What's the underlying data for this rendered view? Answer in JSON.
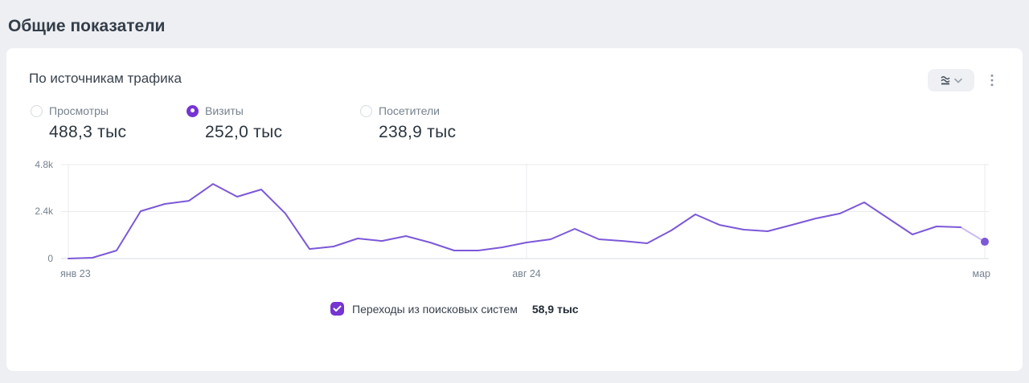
{
  "page": {
    "title": "Общие показатели"
  },
  "card": {
    "title": "По источникам трафика"
  },
  "metrics": {
    "items": [
      {
        "label": "Просмотры",
        "value": "488,3 тыс",
        "selected": false
      },
      {
        "label": "Визиты",
        "value": "252,0 тыс",
        "selected": true
      },
      {
        "label": "Посетители",
        "value": "238,9 тыс",
        "selected": false
      }
    ]
  },
  "legend": {
    "checked": true,
    "label": "Переходы из поисковых систем",
    "value": "58,9 тыс"
  },
  "colors": {
    "accent_purple": "#7634d1",
    "line_purple": "#7c58d8",
    "background": "#edeff3",
    "card": "#ffffff",
    "grid": "#e9ebef",
    "axis_line": "#d7dbe0"
  },
  "chart_data": {
    "type": "line",
    "title": "По источникам трафика",
    "ylabel": "",
    "xlabel": "",
    "ylim": [
      0,
      4800
    ],
    "grid": true,
    "line_color": "#7c58d8",
    "last_point_faded": true,
    "y_ticks": [
      "4.8k",
      "2.4k",
      "0"
    ],
    "x_ticks": [
      {
        "index": 0,
        "label": "янв 23"
      },
      {
        "index": 19,
        "label": "авг 24"
      },
      {
        "index": 38,
        "label": "мар"
      }
    ],
    "series": [
      {
        "name": "Переходы из поисковых систем",
        "total_label": "58,9 тыс",
        "values": [
          0,
          40,
          410,
          2420,
          2790,
          2950,
          3810,
          3160,
          3530,
          2300,
          490,
          615,
          1025,
          900,
          1150,
          820,
          410,
          410,
          575,
          820,
          985,
          1520,
          985,
          900,
          780,
          1435,
          2255,
          1720,
          1475,
          1395,
          1720,
          2050,
          2300,
          2870,
          2050,
          1230,
          1640,
          1600,
          860
        ]
      }
    ]
  }
}
